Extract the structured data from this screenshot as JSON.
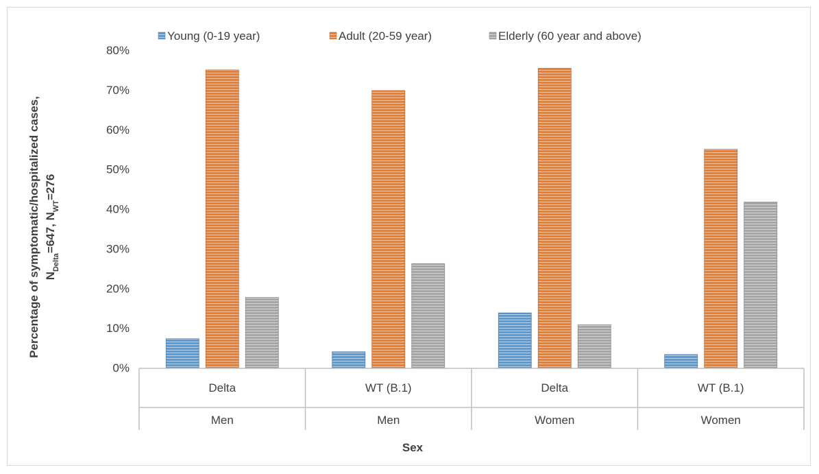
{
  "chart_data": {
    "type": "bar",
    "title": "",
    "xlabel": "Sex",
    "ylabel": {
      "prefix": "Percentage of symptomatic/hospitalized cases,",
      "line2_parts": [
        {
          "text": "N",
          "sub": false
        },
        {
          "text": "Delta",
          "sub": true
        },
        {
          "text": "=647, N",
          "sub": false
        },
        {
          "text": "WT",
          "sub": true
        },
        {
          "text": "=276",
          "sub": false
        }
      ]
    },
    "ylim": [
      0,
      80
    ],
    "yticks": [
      0,
      10,
      20,
      30,
      40,
      50,
      60,
      70,
      80
    ],
    "ytick_labels": [
      "0%",
      "10%",
      "20%",
      "30%",
      "40%",
      "50%",
      "60%",
      "70%",
      "80%"
    ],
    "grid": false,
    "legend_position": "top",
    "categories": [
      {
        "variant": "Delta",
        "sex": "Men"
      },
      {
        "variant": "WT (B.1)",
        "sex": "Men"
      },
      {
        "variant": "Delta",
        "sex": "Women"
      },
      {
        "variant": "WT (B.1)",
        "sex": "Women"
      }
    ],
    "series": [
      {
        "name": "Young (0-19 year)",
        "color": "#5b9bd5",
        "values": [
          7.3,
          4.0,
          13.8,
          3.3
        ]
      },
      {
        "name": "Adult (20-59 year)",
        "color": "#ed7d31",
        "values": [
          75.0,
          69.8,
          75.4,
          55.0
        ]
      },
      {
        "name": "Elderly (60 year and above)",
        "color": "#a5a5a5",
        "values": [
          17.7,
          26.2,
          10.8,
          41.7
        ]
      }
    ]
  }
}
